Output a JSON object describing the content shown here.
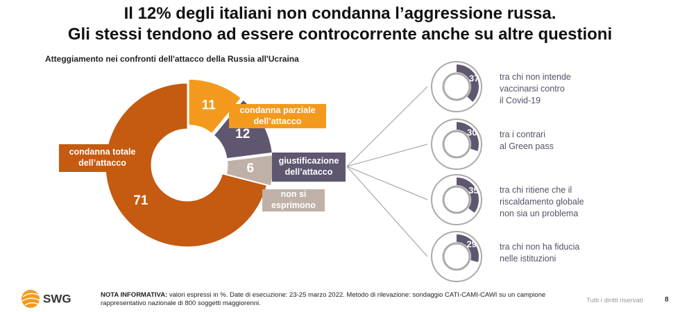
{
  "title": [
    "Il 12% degli italiani non condanna l’aggressione russa.",
    "Gli stessi tendono ad essere controcorrente anche su altre questioni"
  ],
  "chart_data": [
    {
      "type": "donut",
      "title": "Atteggiamento nei confronti dell'attacco della Russia all'Ucraina",
      "categories": [
        "condanna totale\ndell’attacco",
        "condanna parziale\ndell’attacco",
        "giustificazione\ndell’attacco",
        "non si\nesprimono"
      ],
      "values": [
        71,
        11,
        12,
        6
      ],
      "colors": [
        "#c55a11",
        "#f39a1e",
        "#5f5670",
        "#bfb1a8"
      ]
    },
    {
      "type": "donut",
      "label": "tra chi non intende\nvaccinarsi contro\nil Covid-19",
      "values": [
        37
      ],
      "color": "#5f5670"
    },
    {
      "type": "donut",
      "label": "tra i contrari\nal Green pass",
      "values": [
        30
      ],
      "color": "#5f5670"
    },
    {
      "type": "donut",
      "label": "tra chi ritiene che il\nriscaldamento globale\nnon sia un problema",
      "values": [
        35
      ],
      "color": "#5f5670"
    },
    {
      "type": "donut",
      "label": "tra chi non ha fiducia\nnelle istituzioni",
      "values": [
        29
      ],
      "color": "#5f5670"
    }
  ],
  "logo": "SWG",
  "note": {
    "label": "NOTA INFORMATIVA:",
    "text": "valori espressi in %. Date di esecuzione: 23-25 marzo 2022. Metodo di rilevazione: sondaggio CATI-CAMI-CAWI su un campione rappresentativo nazionale di 800 soggetti maggiorenni."
  },
  "footer": {
    "rights": "Tutti i diritti riservati",
    "page": "8"
  }
}
